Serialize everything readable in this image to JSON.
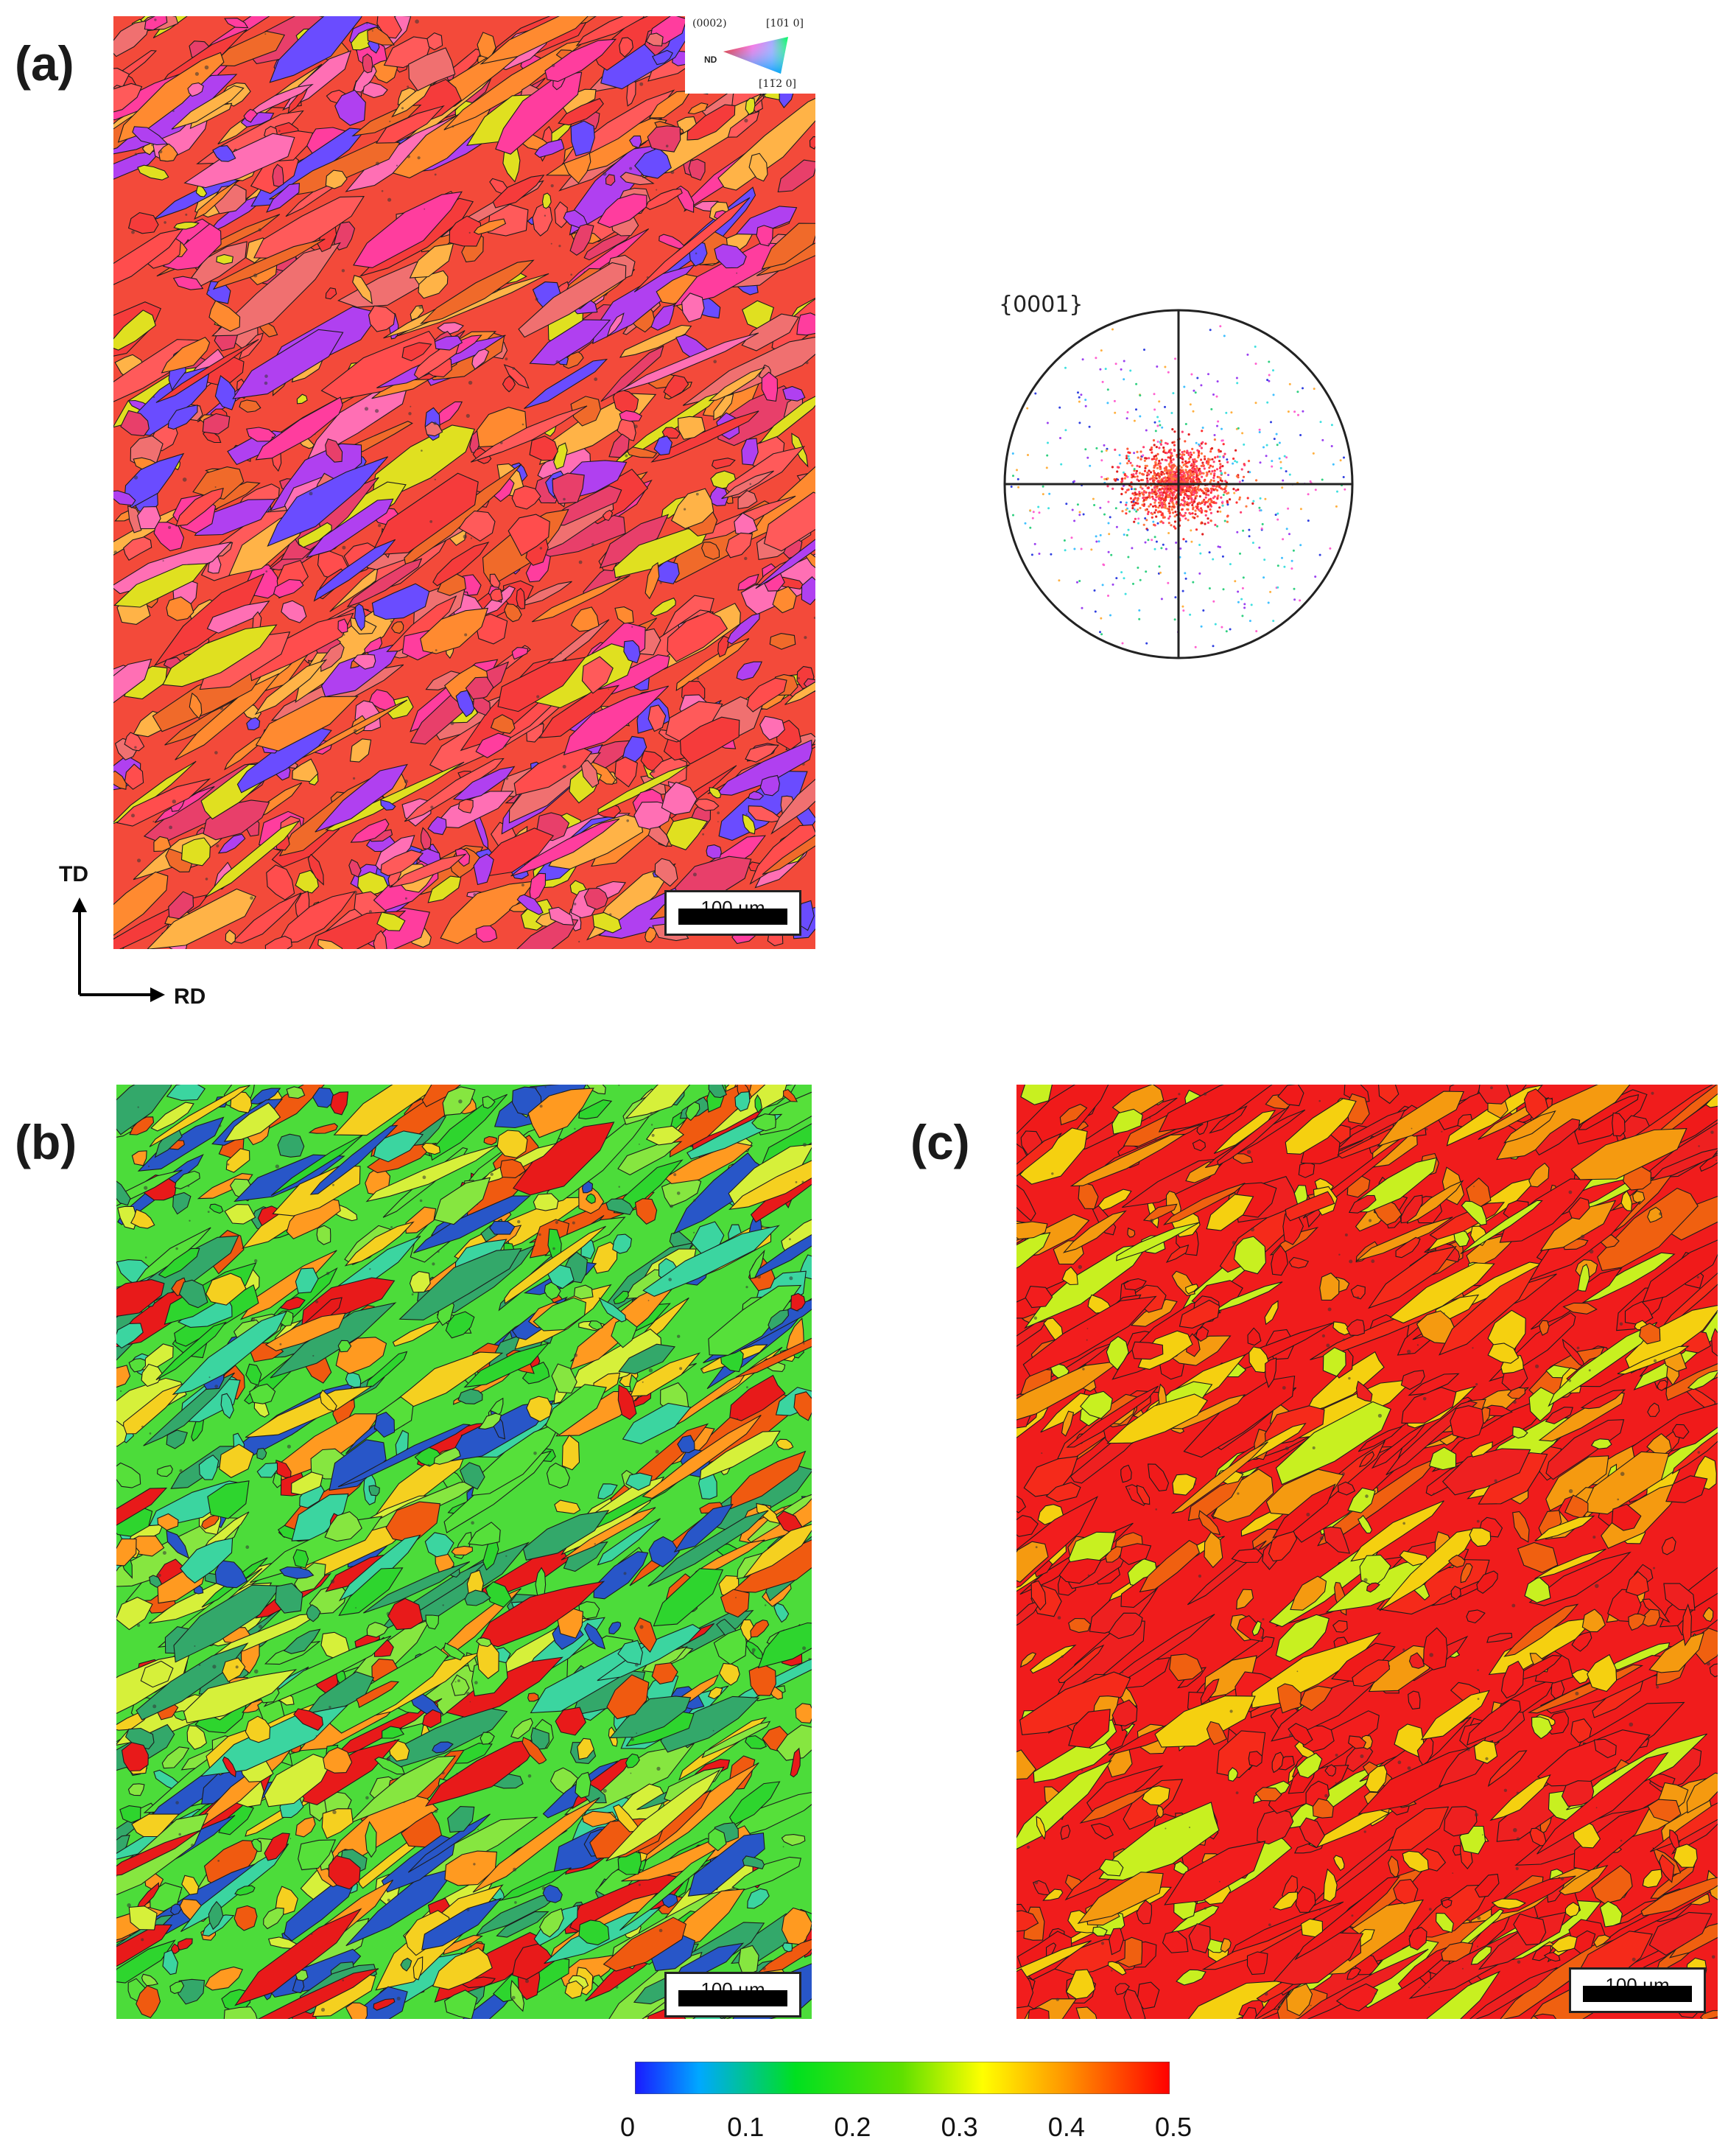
{
  "panels": {
    "a": {
      "label": "(a)",
      "scale_label": "100 µm"
    },
    "b": {
      "label": "(b)",
      "scale_label": "100 µm"
    },
    "c": {
      "label": "(c)",
      "scale_label": "100 µm"
    }
  },
  "ipf_key": {
    "label_0002": "(0002)",
    "label_10-10": "[10̅1 0]",
    "label_11-20": "[11̅2 0]",
    "nd": "ND"
  },
  "pole_figure": {
    "label": "{0001}"
  },
  "axes": {
    "td": "TD",
    "rd": "RD"
  },
  "colorbar": {
    "ticks": [
      "0",
      "0.1",
      "0.2",
      "0.3",
      "0.4",
      "0.5"
    ],
    "colors": [
      "#1a1aff",
      "#00c8ff",
      "#00e000",
      "#80e000",
      "#ffff00",
      "#ff9900",
      "#ff0000"
    ]
  },
  "palettes": {
    "a": [
      "#f53b3b",
      "#ff4d4d",
      "#f06a2a",
      "#ff8a30",
      "#e83f6a",
      "#ff3d9e",
      "#ff6fb4",
      "#ffb347",
      "#e0e020",
      "#b040f0",
      "#6a4cff",
      "#ff5a5a",
      "#f07070"
    ],
    "b": [
      "#2ed52e",
      "#56e03a",
      "#86e640",
      "#d6f03a",
      "#f5d020",
      "#ff9a20",
      "#f05a10",
      "#e81a1a",
      "#33a86a",
      "#2856c8",
      "#3bd5a0"
    ],
    "c": [
      "#f01a1a",
      "#f21d1d",
      "#ee2020",
      "#f52a1a",
      "#f06010",
      "#f59a10",
      "#f5d010",
      "#c8f020"
    ]
  }
}
